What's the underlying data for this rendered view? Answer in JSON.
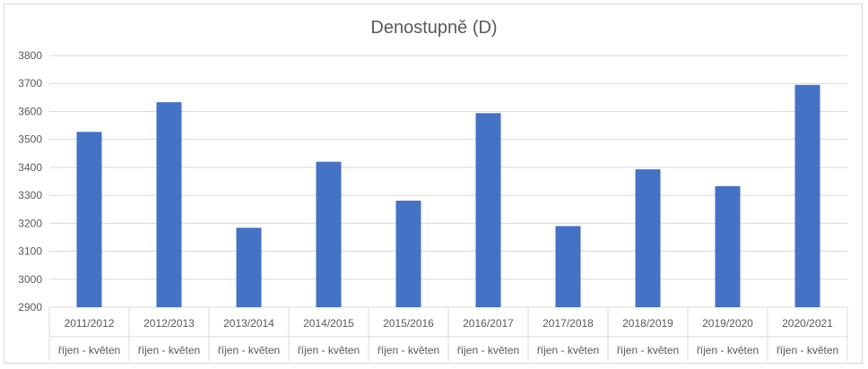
{
  "chart_data": {
    "type": "bar",
    "title": "Denostupně (D)",
    "categories": [
      "2011/2012",
      "2012/2013",
      "2013/2014",
      "2014/2015",
      "2015/2016",
      "2016/2017",
      "2017/2018",
      "2018/2019",
      "2019/2020",
      "2020/2021"
    ],
    "sub_category_label": "říjen - květen",
    "values": [
      3527,
      3633,
      3184,
      3420,
      3281,
      3594,
      3190,
      3393,
      3333,
      3695
    ],
    "ylim": [
      2900,
      3800
    ],
    "yticks": [
      2900,
      3000,
      3100,
      3200,
      3300,
      3400,
      3500,
      3600,
      3700,
      3800
    ],
    "grid": true,
    "legend": "none",
    "bar_color": "#4472c4"
  }
}
